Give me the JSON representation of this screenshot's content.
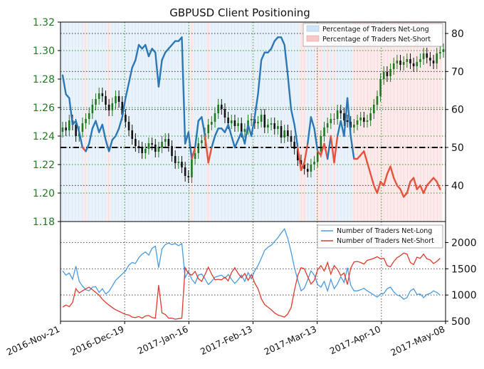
{
  "chart_data": [
    {
      "type": "line",
      "title": "GBPUSD Client Positioning",
      "xlabel": "",
      "x_dates": [
        "2016-Nov-21",
        "2016-Dec-19",
        "2017-Jan-16",
        "2017-Feb-13",
        "2017-Mar-13",
        "2017-Apr-10",
        "2017-May-08"
      ],
      "y_left_label": "",
      "y_left_ticks": [
        "1.18",
        "1.20",
        "1.22",
        "1.24",
        "1.26",
        "1.28",
        "1.30",
        "1.32"
      ],
      "y_left_lim": [
        1.18,
        1.32
      ],
      "y_right_ticks": [
        "40",
        "50",
        "60",
        "70",
        "80"
      ],
      "y_right_lim": [
        30.5,
        83
      ],
      "reference_line_pct": 50,
      "grid": true,
      "legend_position": "top-right",
      "legend": [
        {
          "name": "Percentage of Traders Net-Long",
          "color": "#cfe4f5"
        },
        {
          "name": "Percentage of Traders Net-Short",
          "color": "#f7c8c8"
        }
      ],
      "price_color": "#1f7a1f",
      "price_down_color": "#111111",
      "price_close_approx": [
        1.246,
        1.244,
        1.251,
        1.248,
        1.24,
        1.243,
        1.249,
        1.252,
        1.256,
        1.262,
        1.266,
        1.27,
        1.268,
        1.262,
        1.258,
        1.263,
        1.268,
        1.264,
        1.255,
        1.25,
        1.244,
        1.238,
        1.233,
        1.232,
        1.228,
        1.231,
        1.235,
        1.234,
        1.229,
        1.232,
        1.236,
        1.238,
        1.233,
        1.226,
        1.221,
        1.222,
        1.218,
        1.212,
        1.211,
        1.224,
        1.228,
        1.235,
        1.237,
        1.242,
        1.248,
        1.25,
        1.256,
        1.262,
        1.259,
        1.253,
        1.249,
        1.251,
        1.247,
        1.249,
        1.243,
        1.245,
        1.251,
        1.252,
        1.249,
        1.25,
        1.255,
        1.246,
        1.248,
        1.249,
        1.245,
        1.247,
        1.239,
        1.244,
        1.24,
        1.236,
        1.231,
        1.223,
        1.22,
        1.217,
        1.215,
        1.22,
        1.222,
        1.229,
        1.24,
        1.246,
        1.249,
        1.252,
        1.252,
        1.258,
        1.256,
        1.251,
        1.25,
        1.246,
        1.248,
        1.251,
        1.253,
        1.25,
        1.251,
        1.256,
        1.262,
        1.268,
        1.28,
        1.285,
        1.282,
        1.287,
        1.291,
        1.293,
        1.29,
        1.292,
        1.294,
        1.291,
        1.289,
        1.292,
        1.294,
        1.298,
        1.295,
        1.293,
        1.291,
        1.298,
        1.299,
        1.301
      ],
      "pct_net_long_approx": [
        69,
        64,
        63,
        56,
        57,
        54,
        50,
        49,
        51,
        55,
        57,
        54,
        56,
        52,
        49,
        52,
        53,
        55,
        58,
        63,
        67,
        71,
        73,
        77,
        76,
        77,
        74,
        76,
        75,
        66,
        73,
        75,
        76,
        77,
        78,
        78,
        79,
        51,
        54,
        47,
        50,
        57,
        58,
        53,
        46,
        50,
        53,
        55,
        55,
        54,
        56,
        53,
        50,
        52,
        54,
        51,
        56,
        53,
        58,
        64,
        73,
        75,
        75,
        76,
        78,
        79,
        79,
        77,
        69,
        60,
        56,
        50,
        44,
        46,
        51,
        58,
        55,
        49,
        48,
        51,
        47,
        53,
        46,
        53,
        57,
        53,
        63,
        53,
        47,
        47,
        48,
        49,
        46,
        43,
        40,
        38,
        41,
        40,
        43,
        45,
        42,
        40,
        39,
        37,
        38,
        41,
        42,
        39,
        40,
        38,
        40,
        41,
        42,
        41,
        39
      ],
      "series": [
        {
          "name": "Percentage of Traders Net-Long",
          "color": "#2c78b5",
          "pct_lt_50": false
        },
        {
          "name": "Percentage of Traders Net-Short",
          "color": "#e5533d",
          "pct_lt_50": true
        }
      ]
    },
    {
      "type": "line",
      "xlabel": "",
      "y_right_ticks": [
        "500",
        "1000",
        "1500",
        "2000"
      ],
      "y_lim": [
        500,
        2400
      ],
      "grid": true,
      "legend_position": "top-right",
      "series": [
        {
          "name": "Number of Traders Net-Long",
          "color": "#4a9be0",
          "values": [
            1460,
            1380,
            1420,
            1300,
            1550,
            1260,
            1170,
            1100,
            1080,
            1150,
            1160,
            1050,
            1120,
            1020,
            1070,
            1170,
            1280,
            1340,
            1400,
            1460,
            1570,
            1620,
            1600,
            1710,
            1780,
            1820,
            1760,
            1890,
            1930,
            1520,
            1880,
            1960,
            1990,
            1960,
            1980,
            1940,
            1980,
            1330,
            1450,
            1300,
            1220,
            1380,
            1400,
            1310,
            1200,
            1260,
            1340,
            1360,
            1380,
            1320,
            1390,
            1300,
            1220,
            1290,
            1380,
            1260,
            1430,
            1310,
            1460,
            1560,
            1700,
            1850,
            1910,
            1950,
            2020,
            2090,
            2180,
            2260,
            2080,
            1820,
            1520,
            1290,
            1080,
            1130,
            1290,
            1460,
            1380,
            1200,
            1150,
            1260,
            1080,
            1300,
            1120,
            1210,
            1350,
            1240,
            1520,
            1190,
            1080,
            1080,
            1100,
            1130,
            1080,
            1040,
            1000,
            960,
            1020,
            1030,
            1120,
            1150,
            1060,
            1000,
            980,
            920,
            950,
            1080,
            1120,
            1010,
            1020,
            950,
            1010,
            1030,
            1080,
            1050,
            1000
          ]
        },
        {
          "name": "Number of Traders Net-Short",
          "color": "#e03a2c",
          "values": [
            770,
            810,
            780,
            860,
            1120,
            1040,
            1080,
            1120,
            1150,
            1100,
            1050,
            1000,
            920,
            860,
            810,
            760,
            720,
            690,
            660,
            630,
            620,
            580,
            570,
            590,
            560,
            600,
            610,
            570,
            560,
            1190,
            660,
            630,
            560,
            560,
            540,
            550,
            560,
            1520,
            1410,
            1380,
            1450,
            1310,
            1260,
            1390,
            1530,
            1400,
            1290,
            1300,
            1290,
            1340,
            1270,
            1430,
            1520,
            1410,
            1330,
            1410,
            1280,
            1390,
            1230,
            1120,
            930,
            820,
            770,
            720,
            660,
            620,
            600,
            580,
            640,
            760,
            1090,
            1370,
            1520,
            1500,
            1350,
            1210,
            1280,
            1480,
            1560,
            1460,
            1620,
            1400,
            1560,
            1490,
            1370,
            1420,
            1200,
            1510,
            1630,
            1640,
            1620,
            1590,
            1660,
            1680,
            1700,
            1730,
            1690,
            1700,
            1560,
            1540,
            1640,
            1710,
            1750,
            1800,
            1780,
            1620,
            1580,
            1720,
            1700,
            1780,
            1690,
            1670,
            1600,
            1640,
            1700
          ]
        }
      ]
    }
  ]
}
